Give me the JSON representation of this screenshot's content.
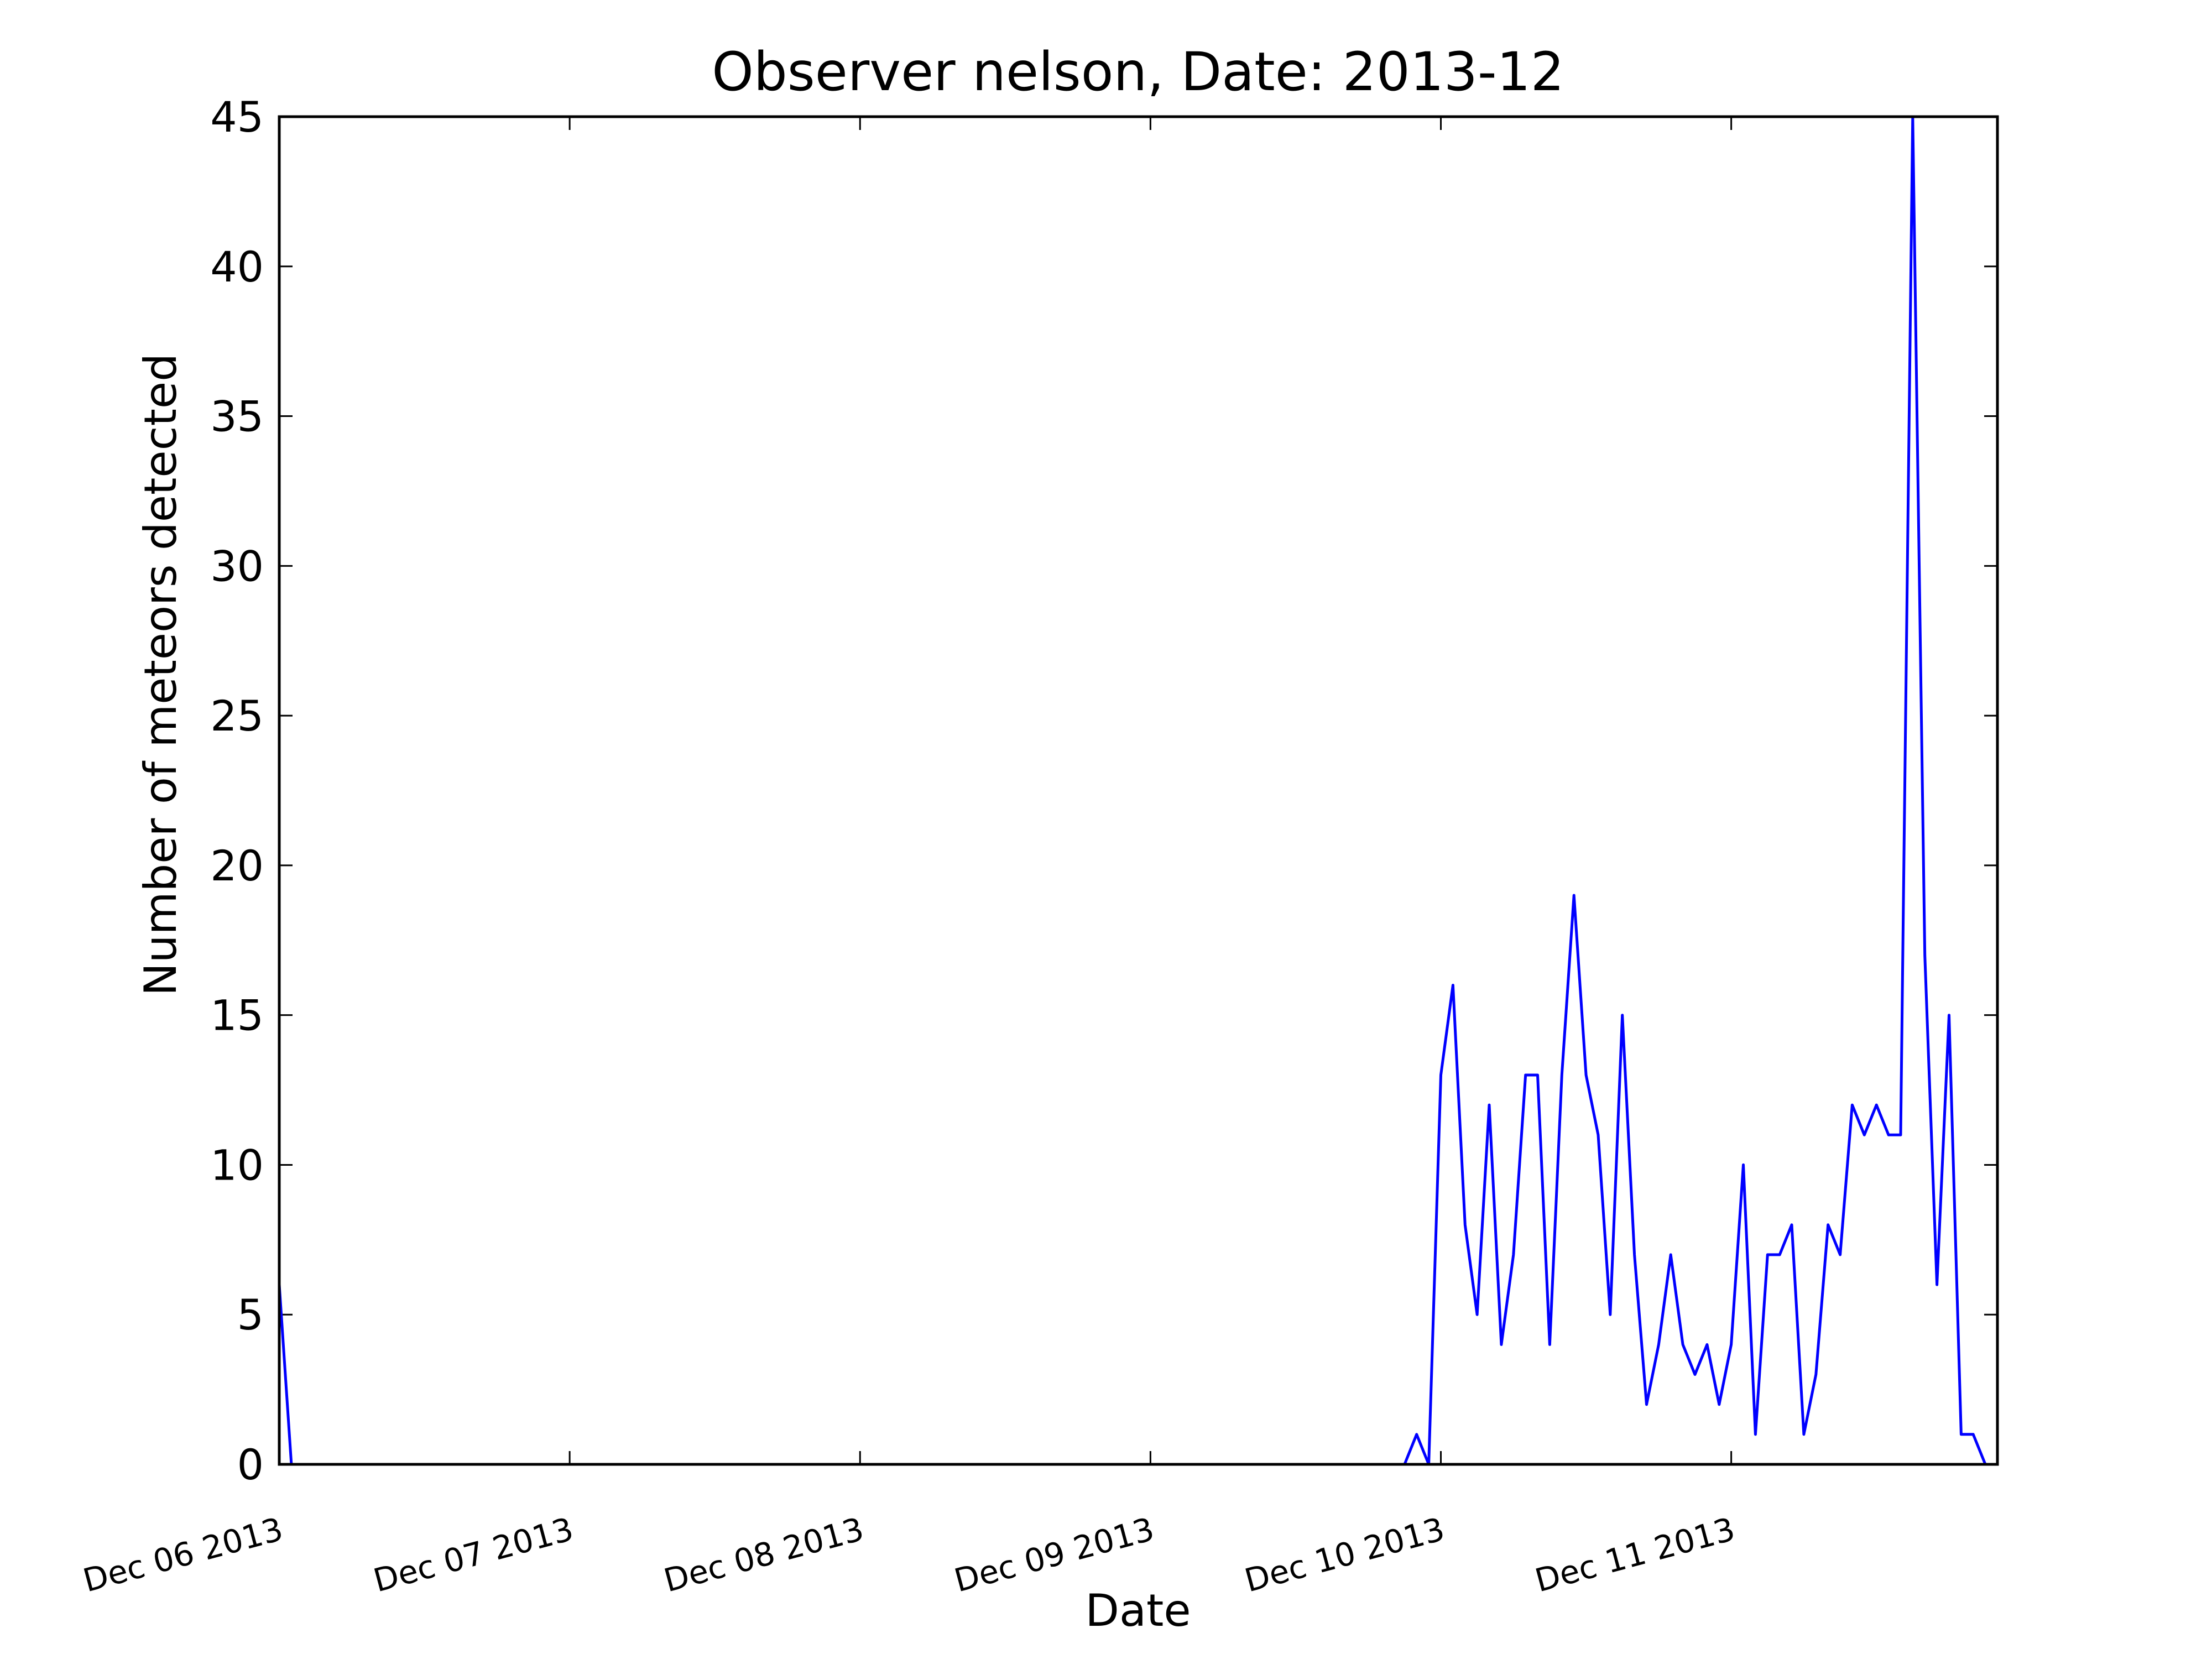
{
  "chart_data": {
    "type": "line",
    "title": "Observer nelson, Date: 2013-12",
    "xlabel": "Date",
    "ylabel": "Number of meteors detected",
    "xlim": [
      "2013-12-06 00:00",
      "2013-12-11 22:00"
    ],
    "ylim": [
      0,
      45
    ],
    "yticks": [
      0,
      5,
      10,
      15,
      20,
      25,
      30,
      35,
      40,
      45
    ],
    "xticks": [
      {
        "date": "2013-12-06 00:00",
        "label": "Dec 06 2013"
      },
      {
        "date": "2013-12-07 00:00",
        "label": "Dec 07 2013"
      },
      {
        "date": "2013-12-08 00:00",
        "label": "Dec 08 2013"
      },
      {
        "date": "2013-12-09 00:00",
        "label": "Dec 09 2013"
      },
      {
        "date": "2013-12-10 00:00",
        "label": "Dec 10 2013"
      },
      {
        "date": "2013-12-11 00:00",
        "label": "Dec 11 2013"
      }
    ],
    "grid": false,
    "color": "#0000ff",
    "x": [
      "2013-12-06 00:00",
      "2013-12-06 01:00",
      "2013-12-09 21:00",
      "2013-12-09 22:00",
      "2013-12-09 23:00",
      "2013-12-10 00:00",
      "2013-12-10 01:00",
      "2013-12-10 02:00",
      "2013-12-10 03:00",
      "2013-12-10 04:00",
      "2013-12-10 05:00",
      "2013-12-10 06:00",
      "2013-12-10 07:00",
      "2013-12-10 08:00",
      "2013-12-10 09:00",
      "2013-12-10 10:00",
      "2013-12-10 11:00",
      "2013-12-10 12:00",
      "2013-12-10 13:00",
      "2013-12-10 14:00",
      "2013-12-10 15:00",
      "2013-12-10 16:00",
      "2013-12-10 17:00",
      "2013-12-10 18:00",
      "2013-12-10 19:00",
      "2013-12-10 20:00",
      "2013-12-10 21:00",
      "2013-12-10 22:00",
      "2013-12-10 23:00",
      "2013-12-11 00:00",
      "2013-12-11 01:00",
      "2013-12-11 02:00",
      "2013-12-11 03:00",
      "2013-12-11 04:00",
      "2013-12-11 05:00",
      "2013-12-11 06:00",
      "2013-12-11 07:00",
      "2013-12-11 08:00",
      "2013-12-11 09:00",
      "2013-12-11 10:00",
      "2013-12-11 11:00",
      "2013-12-11 12:00",
      "2013-12-11 13:00",
      "2013-12-11 14:00",
      "2013-12-11 15:00",
      "2013-12-11 16:00",
      "2013-12-11 17:00",
      "2013-12-11 18:00",
      "2013-12-11 19:00",
      "2013-12-11 20:00",
      "2013-12-11 21:00"
    ],
    "y": [
      6,
      0,
      0,
      1,
      0,
      13,
      16,
      8,
      5,
      12,
      4,
      7,
      13,
      13,
      4,
      13,
      19,
      13,
      11,
      5,
      15,
      7,
      2,
      4,
      7,
      4,
      3,
      4,
      2,
      4,
      10,
      1,
      7,
      7,
      8,
      1,
      3,
      8,
      7,
      12,
      11,
      12,
      11,
      11,
      45,
      17,
      6,
      15,
      1,
      1,
      0
    ]
  }
}
